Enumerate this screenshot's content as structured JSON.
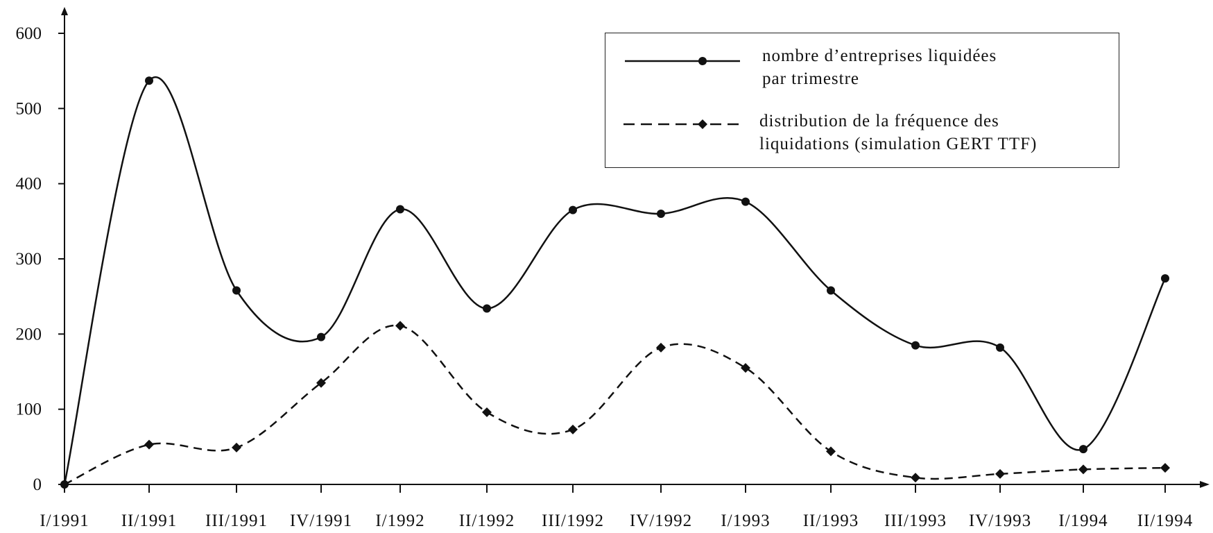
{
  "chart_data": {
    "type": "line",
    "categories": [
      "I/1991",
      "II/1991",
      "III/1991",
      "IV/1991",
      "I/1992",
      "II/1992",
      "III/1992",
      "IV/1992",
      "I/1993",
      "II/1993",
      "III/1993",
      "IV/1993",
      "I/1994",
      "II/1994"
    ],
    "y_ticks": [
      "0",
      "100",
      "200",
      "300",
      "400",
      "500",
      "600"
    ],
    "ylim": [
      0,
      600
    ],
    "grid": false,
    "legend_position": "top-right",
    "series": [
      {
        "name": "nombre d’entreprises liquidées\npar trimestre",
        "line_style": "solid",
        "marker": "circle",
        "color": "#111111",
        "values": [
          0,
          537,
          258,
          196,
          366,
          234,
          365,
          360,
          376,
          258,
          185,
          182,
          47,
          274
        ]
      },
      {
        "name": "distribution de la fréquence des\nliquidations (simulation GERT TTF)",
        "line_style": "dashed",
        "marker": "diamond",
        "color": "#111111",
        "values": [
          0,
          53,
          49,
          135,
          211,
          96,
          73,
          182,
          155,
          44,
          9,
          14,
          20,
          22
        ]
      }
    ]
  }
}
